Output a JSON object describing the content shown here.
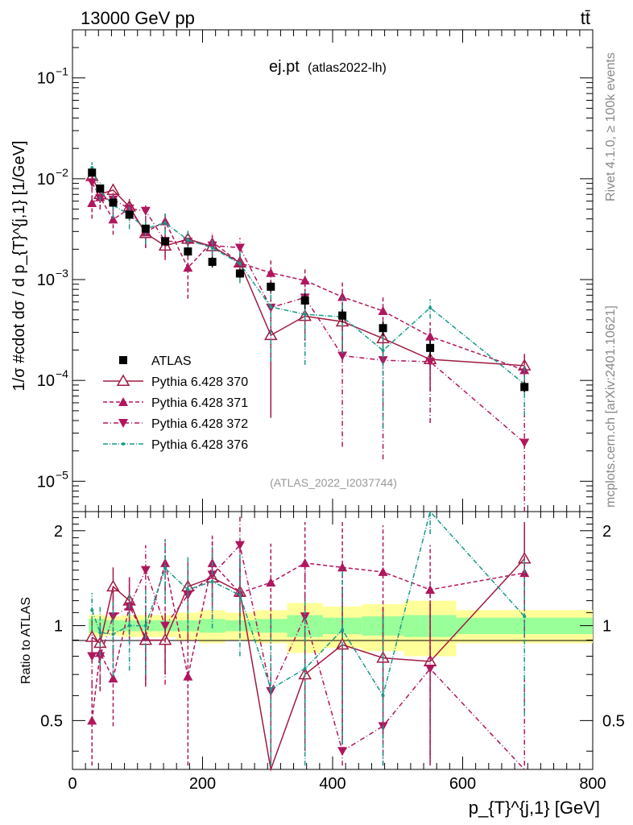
{
  "header": {
    "energy_label": "13000 GeV pp",
    "process_label": "tt̄"
  },
  "chart_data": {
    "type": "scatter",
    "title": "ej.pt",
    "subtitle": "(atlas2022-lh)",
    "analysis_id": "(ATLAS_2022_I2037744)",
    "ylabel": "1/σ #cdot dσ / d p_{T}^{j,1} [1/GeV]",
    "xlabel": "p_{T}^{j,1} [GeV]",
    "ratio_ylabel": "Ratio to ATLAS",
    "side_labels": {
      "rivet": "Rivet 4.1.0, ≥ 100k events",
      "mcplots": "mcplots.cern.ch [arXiv:2401.10621]"
    },
    "xlim": [
      0,
      800
    ],
    "ylim": [
      5e-06,
      0.3
    ],
    "ratio_ylim": [
      0.35,
      2.3
    ],
    "x_ticks": [
      "0",
      "200",
      "400",
      "600",
      "800"
    ],
    "y_ticks": [
      {
        "base": "10",
        "exp": "−1",
        "value": 0.1
      },
      {
        "base": "10",
        "exp": "−2",
        "value": 0.01
      },
      {
        "base": "10",
        "exp": "−3",
        "value": 0.001
      },
      {
        "base": "10",
        "exp": "−4",
        "value": 0.0001
      },
      {
        "base": "10",
        "exp": "−5",
        "value": 1e-05
      }
    ],
    "ratio_ticks": [
      "0.5",
      "1",
      "2"
    ],
    "bins": [
      [
        25,
        35
      ],
      [
        35,
        50
      ],
      [
        50,
        75
      ],
      [
        75,
        100
      ],
      [
        100,
        125
      ],
      [
        125,
        160
      ],
      [
        160,
        195
      ],
      [
        195,
        235
      ],
      [
        235,
        280
      ],
      [
        280,
        330
      ],
      [
        330,
        385
      ],
      [
        385,
        445
      ],
      [
        445,
        510
      ],
      [
        510,
        590
      ],
      [
        590,
        800
      ]
    ],
    "x": [
      30,
      42.5,
      62.5,
      87.5,
      112.5,
      142.5,
      177.5,
      215,
      257.5,
      305,
      357.5,
      415,
      477.5,
      550,
      695
    ],
    "legend": [
      "ATLAS",
      "Pythia 6.428 370",
      "Pythia 6.428 371",
      "Pythia 6.428 372",
      "Pythia 6.428 376"
    ],
    "data": {
      "name": "ATLAS",
      "values": [
        0.0115,
        0.008,
        0.0058,
        0.0044,
        0.0032,
        0.0024,
        0.0019,
        0.0015,
        0.00115,
        0.00085,
        0.00062,
        0.00044,
        0.00033,
        0.00021,
        8.6e-05
      ],
      "band_inner": [
        0.05,
        0.05,
        0.04,
        0.04,
        0.04,
        0.04,
        0.04,
        0.05,
        0.04,
        0.05,
        0.08,
        0.06,
        0.07,
        0.08,
        0.06
      ],
      "band_outer": [
        0.08,
        0.08,
        0.07,
        0.08,
        0.08,
        0.08,
        0.1,
        0.12,
        0.1,
        0.12,
        0.18,
        0.15,
        0.17,
        0.2,
        0.12
      ]
    },
    "series": [
      {
        "name": "Pythia 6.428 370",
        "color": "#a01a40",
        "marker": "triangle-up-open",
        "dash": "",
        "ratio": [
          0.92,
          0.88,
          1.33,
          1.2,
          0.9,
          0.9,
          1.33,
          1.42,
          1.28,
          0.33,
          0.7,
          0.87,
          0.79,
          0.77,
          1.63
        ],
        "ratio_err": [
          0.12,
          0.12,
          0.2,
          0.2,
          0.25,
          0.2,
          0.22,
          0.25,
          0.28,
          0.3,
          0.3,
          0.45,
          0.35,
          0.4,
          0.5
        ]
      },
      {
        "name": "Pythia 6.428 371",
        "color": "#b0165d",
        "marker": "triangle-up",
        "dash": "5,3",
        "ratio": [
          0.5,
          0.82,
          0.68,
          1.15,
          0.92,
          1.58,
          0.69,
          1.58,
          1.27,
          1.37,
          1.58,
          1.53,
          1.48,
          1.3,
          1.47
        ],
        "ratio_err": [
          0.15,
          0.2,
          0.2,
          0.25,
          0.28,
          0.3,
          0.35,
          0.35,
          0.35,
          0.45,
          0.55,
          0.6,
          0.6,
          0.5,
          0.55
        ]
      },
      {
        "name": "Pythia 6.428 372",
        "color": "#b0165d",
        "marker": "triangle-down",
        "dash": "6,3,1,3",
        "ratio": [
          0.8,
          0.8,
          1.07,
          1.15,
          1.5,
          1.0,
          1.25,
          1.45,
          1.8,
          0.62,
          1.07,
          0.4,
          0.48,
          0.73,
          0.28
        ],
        "ratio_err": [
          0.15,
          0.18,
          0.25,
          0.28,
          0.3,
          0.35,
          0.35,
          0.4,
          0.45,
          0.45,
          0.55,
          0.5,
          0.5,
          0.55,
          0.4
        ]
      },
      {
        "name": "Pythia 6.428 376",
        "color": "#1a9a8a",
        "marker": "dot",
        "dash": "6,2,1,2",
        "ratio": [
          1.12,
          0.95,
          0.94,
          1.0,
          1.0,
          1.52,
          1.3,
          1.38,
          1.25,
          0.63,
          0.73,
          0.97,
          0.6,
          2.5,
          1.07
        ],
        "ratio_err": [
          0.15,
          0.2,
          0.25,
          0.28,
          0.3,
          0.35,
          0.35,
          0.4,
          0.45,
          0.45,
          0.5,
          0.55,
          0.5,
          0.55,
          0.55
        ]
      }
    ]
  }
}
